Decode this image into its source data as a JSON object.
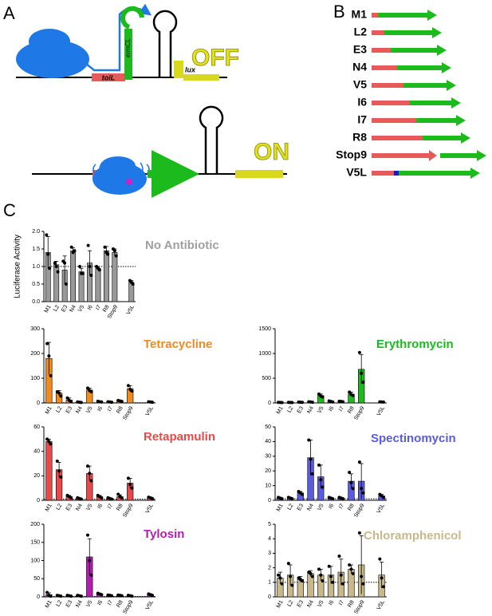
{
  "panels": {
    "a": "A",
    "b": "B",
    "c": "C"
  },
  "diagram": {
    "toil": "toiL",
    "ermcl": "ermCL",
    "lux": "lux",
    "off": "OFF",
    "on": "ON"
  },
  "constructs": [
    "M1",
    "L2",
    "E3",
    "N4",
    "V5",
    "I6",
    "I7",
    "R8",
    "Stop9",
    "V5L"
  ],
  "chart_data": [
    {
      "type": "bar",
      "title": "No Antibiotic",
      "ylabel": "Luciferase Activity",
      "color": "#999999",
      "title_color": "#a0a0a0",
      "refline": 1,
      "categories": [
        "M1",
        "L2",
        "E3",
        "N4",
        "V5",
        "I6",
        "I7",
        "R8",
        "Stop9",
        null,
        "V5L"
      ],
      "values": [
        1.4,
        1.05,
        0.9,
        1.45,
        0.85,
        1.1,
        0.95,
        1.45,
        1.4,
        null,
        0.55
      ],
      "errors": [
        0.45,
        0.1,
        0.4,
        0.08,
        0.1,
        0.35,
        0.05,
        0.12,
        0.1,
        null,
        0.05
      ],
      "points": [
        [
          1.9,
          1.35,
          0.95
        ],
        [
          1.1,
          1.0,
          0.85
        ],
        [
          1.15,
          1.1,
          0.5
        ],
        [
          1.55,
          1.4,
          1.45
        ],
        [
          1.0,
          0.8,
          0.8
        ],
        [
          1.6,
          1.0,
          0.75
        ],
        [
          1.0,
          0.95,
          0.9
        ],
        [
          1.55,
          1.4,
          1.35
        ],
        [
          1.5,
          1.45,
          1.3
        ],
        null,
        [
          0.6,
          0.55,
          0.5
        ]
      ],
      "ylim": [
        0,
        2
      ],
      "yticks": [
        {
          "value": 0,
          "label": "0.0"
        },
        {
          "value": 0.5,
          "label": "0.5"
        },
        {
          "value": 1,
          "label": "1.0"
        },
        {
          "value": 1.5,
          "label": "1.5"
        },
        {
          "value": 2,
          "label": "2.0"
        }
      ]
    },
    {
      "type": "bar",
      "title": "Tetracycline",
      "color": "#f28a1e",
      "title_color": "#f28a1e",
      "refline": 1,
      "categories": [
        "M1",
        "L2",
        "E3",
        "N4",
        "V5",
        "I6",
        "I7",
        "R8",
        "Stop9",
        null,
        "V5L"
      ],
      "values": [
        180,
        40,
        12,
        3,
        52,
        5,
        4,
        8,
        58,
        null,
        4
      ],
      "errors": [
        65,
        10,
        8,
        1,
        8,
        2,
        1,
        3,
        12,
        null,
        1
      ],
      "points": [
        [
          240,
          190,
          110
        ],
        [
          45,
          40,
          28
        ],
        [
          20,
          10,
          5
        ],
        [
          4,
          3,
          2
        ],
        [
          60,
          50,
          45
        ],
        [
          7,
          5,
          4
        ],
        [
          5,
          4,
          3
        ],
        [
          10,
          8,
          6
        ],
        [
          70,
          55,
          48
        ],
        null,
        [
          5,
          4,
          3
        ]
      ],
      "ylim": [
        0,
        300
      ],
      "yticks": [
        0,
        100,
        200,
        300
      ]
    },
    {
      "type": "bar",
      "title": "Erythromycin",
      "color": "#1cba1c",
      "title_color": "#1cba1c",
      "refline": 1,
      "categories": [
        "M1",
        "L2",
        "E3",
        "N4",
        "V5",
        "I6",
        "I7",
        "R8",
        "Stop9",
        null,
        "V5L"
      ],
      "values": [
        10,
        10,
        15,
        20,
        150,
        30,
        30,
        180,
        680,
        null,
        20
      ],
      "errors": [
        2,
        2,
        3,
        5,
        30,
        10,
        5,
        40,
        300,
        null,
        2
      ],
      "points": [
        [
          12,
          10,
          8
        ],
        [
          12,
          10,
          8
        ],
        [
          18,
          15,
          12
        ],
        [
          25,
          20,
          15
        ],
        [
          180,
          140,
          120
        ],
        [
          40,
          30,
          20
        ],
        [
          35,
          30,
          25
        ],
        [
          220,
          170,
          150
        ],
        [
          1020,
          600,
          420
        ],
        null,
        [
          22,
          20,
          18
        ]
      ],
      "ylim": [
        0,
        1500
      ],
      "yticks": [
        0,
        500,
        1000,
        1500
      ]
    },
    {
      "type": "bar",
      "title": "Retapamulin",
      "color": "#e84a4a",
      "title_color": "#e84a4a",
      "refline": 1,
      "categories": [
        "M1",
        "L2",
        "E3",
        "N4",
        "V5",
        "I6",
        "I7",
        "R8",
        "Stop9",
        null,
        "V5L"
      ],
      "values": [
        48,
        25,
        3,
        1.5,
        22,
        3,
        1.5,
        3,
        14,
        null,
        2
      ],
      "errors": [
        2,
        6,
        1,
        0.5,
        6,
        1,
        0.5,
        1.5,
        4,
        null,
        0.5
      ],
      "points": [
        [
          50,
          48,
          46
        ],
        [
          32,
          24,
          19
        ],
        [
          4,
          3,
          2
        ],
        [
          2,
          1.5,
          1
        ],
        [
          28,
          22,
          16
        ],
        [
          4,
          3,
          2
        ],
        [
          2,
          1.5,
          1
        ],
        [
          5,
          3,
          2
        ],
        [
          18,
          13,
          10
        ],
        null,
        [
          2.5,
          2,
          1.5
        ]
      ],
      "ylim": [
        0,
        60
      ],
      "yticks": [
        0,
        20,
        40,
        60
      ]
    },
    {
      "type": "bar",
      "title": "Spectinomycin",
      "color": "#5b5be0",
      "title_color": "#5b5be0",
      "refline": 1,
      "categories": [
        "M1",
        "L2",
        "E3",
        "N4",
        "V5",
        "I6",
        "I7",
        "R8",
        "Stop9",
        null,
        "V5L"
      ],
      "values": [
        1.5,
        1.5,
        5,
        29,
        16,
        1.5,
        1.5,
        13,
        13,
        null,
        3
      ],
      "errors": [
        0.5,
        0.5,
        1,
        12,
        8,
        0.5,
        0.5,
        5,
        12,
        null,
        1
      ],
      "points": [
        [
          2,
          1.5,
          1
        ],
        [
          2,
          1.5,
          1
        ],
        [
          6,
          5,
          4
        ],
        [
          41,
          28,
          18
        ],
        [
          24,
          14,
          9
        ],
        [
          2,
          1.5,
          1
        ],
        [
          2,
          1.5,
          1
        ],
        [
          19,
          12,
          8
        ],
        [
          26,
          8,
          5
        ],
        null,
        [
          4,
          3,
          2
        ]
      ],
      "ylim": [
        0,
        50
      ],
      "yticks": [
        0,
        10,
        20,
        30,
        40,
        50
      ]
    },
    {
      "type": "bar",
      "title": "Tylosin",
      "color": "#b21eb2",
      "title_color": "#b21eb2",
      "refline": 1,
      "categories": [
        "M1",
        "L2",
        "E3",
        "N4",
        "V5",
        "I6",
        "I7",
        "R8",
        "Stop9",
        null,
        "V5L"
      ],
      "values": [
        6,
        3,
        3,
        3,
        110,
        8,
        4,
        4,
        3,
        null,
        6
      ],
      "errors": [
        5,
        1,
        1,
        1,
        50,
        2,
        1,
        1,
        1,
        null,
        2
      ],
      "points": [
        [
          12,
          4,
          2
        ],
        [
          4,
          3,
          2
        ],
        [
          4,
          3,
          2
        ],
        [
          4,
          3,
          2
        ],
        [
          170,
          100,
          60
        ],
        [
          10,
          8,
          6
        ],
        [
          5,
          4,
          3
        ],
        [
          5,
          4,
          3
        ],
        [
          4,
          3,
          2
        ],
        null,
        [
          8,
          6,
          4
        ]
      ],
      "ylim": [
        0,
        200
      ],
      "yticks": [
        0,
        50,
        100,
        150,
        200
      ]
    },
    {
      "type": "bar",
      "title": "Chloramphenicol",
      "color": "#c8b88a",
      "title_color": "#c8b88a",
      "refline": 1,
      "categories": [
        "M1",
        "L2",
        "E3",
        "N4",
        "V5",
        "I6",
        "I7",
        "R8",
        "Stop9",
        null,
        "V5L"
      ],
      "values": [
        1.3,
        1.5,
        1.2,
        1.6,
        1.5,
        1.5,
        1.7,
        1.9,
        2.2,
        null,
        1.5
      ],
      "errors": [
        0.4,
        0.7,
        0.2,
        0.2,
        0.4,
        0.6,
        0.9,
        0.3,
        2.0,
        null,
        0.9
      ],
      "points": [
        [
          1.5,
          1.3,
          0.9
        ],
        [
          2.3,
          1.4,
          0.8
        ],
        [
          1.3,
          1.2,
          1.1
        ],
        [
          1.7,
          1.6,
          1.4
        ],
        [
          1.9,
          1.5,
          1.1
        ],
        [
          2.1,
          1.4,
          1.0
        ],
        [
          2.8,
          1.5,
          0.9
        ],
        [
          2.2,
          1.9,
          1.6
        ],
        [
          4.4,
          1.4,
          0.9
        ],
        null,
        [
          2.6,
          1.3,
          0.7
        ]
      ],
      "ylim": [
        0,
        5
      ],
      "yticks": [
        0,
        1,
        2,
        3,
        4,
        5
      ]
    }
  ]
}
